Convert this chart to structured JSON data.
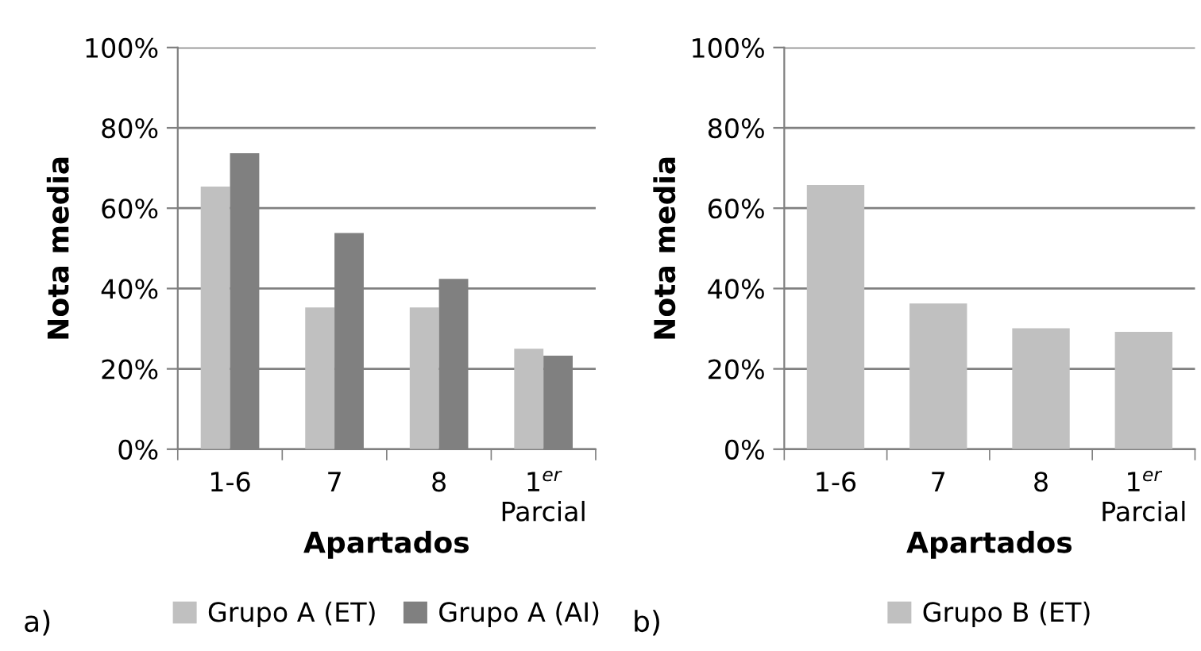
{
  "chart_data": [
    {
      "type": "bar",
      "categories": [
        "1-6",
        "7",
        "8",
        "1$^{er}$\nParcial"
      ],
      "xlabel": "Apartados",
      "ylabel": "Nota media",
      "series": [
        {
          "name": "Grupo A (ET)",
          "color": "#c0c0c0",
          "values": [
            65.4,
            35.3,
            35.3,
            25.0
          ]
        },
        {
          "name": "Grupo A (AI)",
          "color": "#808080",
          "values": [
            73.7,
            53.8,
            42.4,
            23.3
          ]
        }
      ],
      "ylim": [
        0,
        100
      ],
      "yticks": [
        {
          "value": 0,
          "label": "0%"
        },
        {
          "value": 20,
          "label": "20%"
        },
        {
          "value": 40,
          "label": "40%"
        },
        {
          "value": 60,
          "label": "60%"
        },
        {
          "value": 80,
          "label": "80%"
        },
        {
          "value": 100,
          "label": "100%"
        }
      ],
      "grid": "y",
      "legend": "bottom",
      "annotations": [
        "a)"
      ]
    },
    {
      "type": "bar",
      "categories": [
        "1-6",
        "7",
        "8",
        "1$^{er}$\nParcial"
      ],
      "xlabel": "Apartados",
      "ylabel": "Nota media",
      "series": [
        {
          "name": "Grupo B (ET)",
          "color": "#c0c0c0",
          "values": [
            65.8,
            36.3,
            30.1,
            29.2
          ]
        }
      ],
      "ylim": [
        0,
        100
      ],
      "yticks": [
        {
          "value": 0,
          "label": "0%"
        },
        {
          "value": 20,
          "label": "20%"
        },
        {
          "value": 40,
          "label": "40%"
        },
        {
          "value": 60,
          "label": "60%"
        },
        {
          "value": 80,
          "label": "80%"
        },
        {
          "value": 100,
          "label": "100%"
        }
      ],
      "grid": "y",
      "legend": "bottom",
      "annotations": [
        "b)"
      ]
    }
  ]
}
